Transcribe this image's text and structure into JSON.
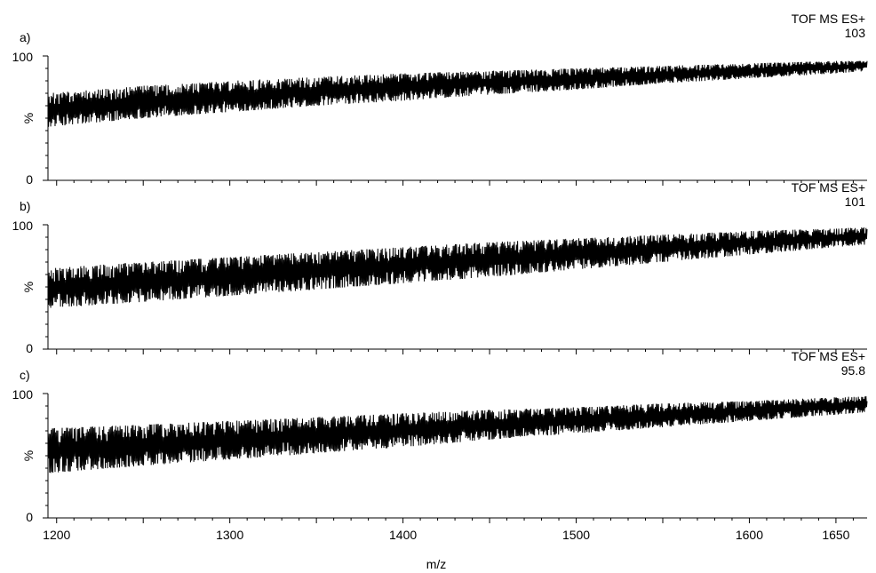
{
  "figure": {
    "xlabel": "m/z",
    "x_ticks": [
      1200,
      1300,
      1400,
      1500,
      1600,
      1650
    ],
    "xlim": [
      1195,
      1668
    ]
  },
  "chart_data": [
    {
      "type": "line",
      "panel_label": "a)",
      "instrument": "TOF MS ES+",
      "max_intensity": "103",
      "ylabel": "%",
      "y_ticks": [
        "0",
        "100"
      ],
      "ylim": [
        0,
        100
      ],
      "xlim": [
        1195,
        1668
      ],
      "series": [
        {
          "envelope_x": [
            1195,
            1250,
            1300,
            1350,
            1400,
            1450,
            1500,
            1550,
            1600,
            1650,
            1668
          ],
          "upper": [
            70,
            76,
            80,
            83,
            86,
            88,
            90,
            92,
            94,
            96,
            96
          ],
          "lower": [
            43,
            50,
            55,
            60,
            64,
            69,
            73,
            78,
            82,
            86,
            88
          ]
        }
      ]
    },
    {
      "type": "line",
      "panel_label": "b)",
      "instrument": "TOF MS ES+",
      "max_intensity": "101",
      "ylabel": "%",
      "y_ticks": [
        "0",
        "100"
      ],
      "ylim": [
        0,
        100
      ],
      "xlim": [
        1195,
        1668
      ],
      "series": [
        {
          "envelope_x": [
            1195,
            1250,
            1300,
            1350,
            1400,
            1450,
            1500,
            1550,
            1600,
            1650,
            1668
          ],
          "upper": [
            65,
            70,
            74,
            78,
            82,
            86,
            89,
            92,
            95,
            97,
            98
          ],
          "lower": [
            33,
            38,
            43,
            48,
            53,
            58,
            64,
            70,
            76,
            82,
            84
          ]
        }
      ]
    },
    {
      "type": "line",
      "panel_label": "c)",
      "instrument": "TOF MS ES+",
      "max_intensity": "95.8",
      "ylabel": "%",
      "y_ticks": [
        "0",
        "100"
      ],
      "ylim": [
        0,
        100
      ],
      "xlim": [
        1195,
        1668
      ],
      "series": [
        {
          "envelope_x": [
            1195,
            1250,
            1300,
            1350,
            1400,
            1450,
            1500,
            1550,
            1600,
            1650,
            1668
          ],
          "upper": [
            72,
            75,
            78,
            81,
            84,
            87,
            89,
            92,
            94,
            97,
            98
          ],
          "lower": [
            36,
            42,
            47,
            52,
            57,
            63,
            68,
            73,
            78,
            83,
            85
          ]
        }
      ]
    }
  ]
}
